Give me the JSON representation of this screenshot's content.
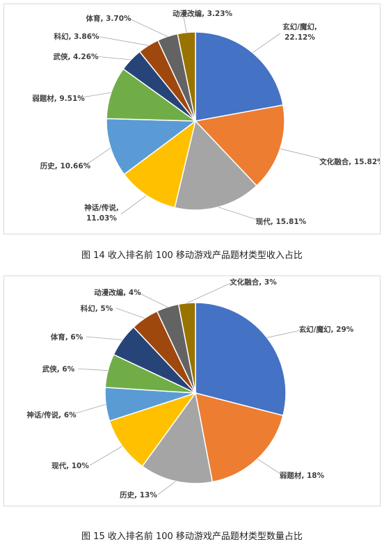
{
  "charts": [
    {
      "caption": "图 14 收入排名前 100 移动游戏产品题材类型收入占比",
      "chart_data": {
        "type": "pie",
        "categories": [
          "玄幻/魔幻",
          "文化融合",
          "现代",
          "神话/传说",
          "历史",
          "弱题材",
          "武侠",
          "科幻",
          "体育",
          "动漫改编"
        ],
        "values": [
          22.12,
          15.82,
          15.81,
          11.03,
          10.66,
          9.51,
          4.26,
          3.86,
          3.7,
          3.23
        ],
        "labels": [
          "22.12%",
          "15.82%",
          "15.81%",
          "11.03%",
          "10.66%",
          "9.51%",
          "4.26%",
          "3.86%",
          "3.70%",
          "3.23%"
        ],
        "colors": [
          "#4472C4",
          "#ED7D31",
          "#A5A5A5",
          "#FFC000",
          "#5B9BD5",
          "#70AD47",
          "#264478",
          "#9E480E",
          "#636363",
          "#997300"
        ]
      }
    },
    {
      "caption": "图 15 收入排名前 100 移动游戏产品题材类型数量占比",
      "chart_data": {
        "type": "pie",
        "categories": [
          "玄幻/魔幻",
          "弱题材",
          "历史",
          "现代",
          "神话/传说",
          "武侠",
          "体育",
          "科幻",
          "动漫改编",
          "文化融合"
        ],
        "values": [
          29,
          18,
          13,
          10,
          6,
          6,
          6,
          5,
          4,
          3
        ],
        "labels": [
          "29%",
          "18%",
          "13%",
          "10%",
          "6%",
          "6%",
          "6%",
          "5%",
          "4%",
          "3%"
        ],
        "colors": [
          "#4472C4",
          "#ED7D31",
          "#A5A5A5",
          "#FFC000",
          "#5B9BD5",
          "#70AD47",
          "#264478",
          "#9E480E",
          "#636363",
          "#997300"
        ]
      }
    }
  ]
}
